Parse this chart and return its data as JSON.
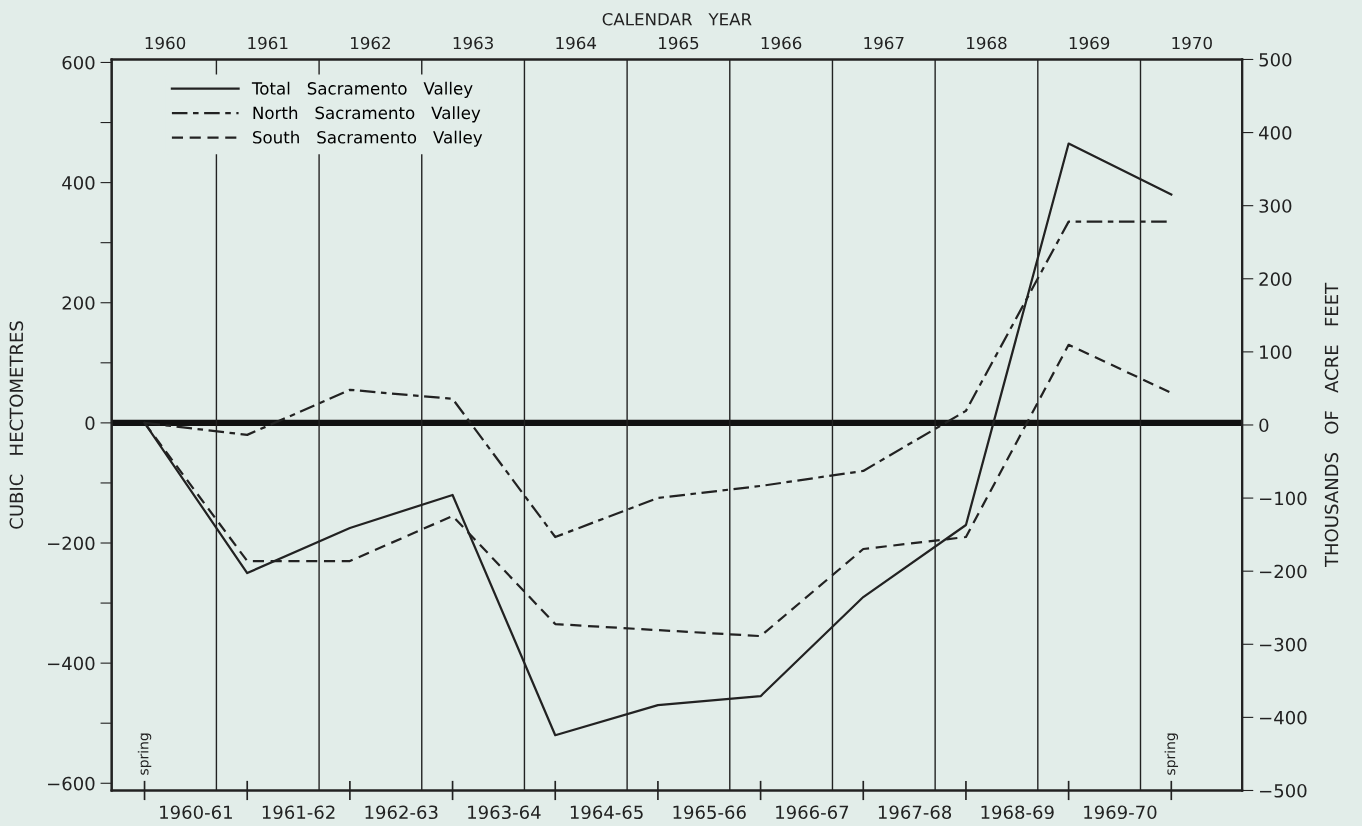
{
  "chart_data": {
    "type": "line",
    "xlabel": "CALENDAR   YEAR",
    "ylabel": "CUBIC   HECTOMETRES",
    "y2label": "THOUSANDS   OF   ACRE   FEET",
    "x": [
      1960,
      1961,
      1962,
      1963,
      1964,
      1965,
      1966,
      1967,
      1968,
      1969,
      1970
    ],
    "series": [
      {
        "name": "Total   Sacramento   Valley",
        "color": "#222222",
        "line_style": "solid",
        "values": [
          0,
          -250,
          -175,
          -120,
          -520,
          -470,
          -455,
          -290,
          -170,
          465,
          380
        ]
      },
      {
        "name": "North   Sacramento   Valley",
        "color": "#222222",
        "line_style": "dashdot",
        "values": [
          0,
          -20,
          55,
          40,
          -190,
          -125,
          -105,
          -80,
          20,
          335,
          335
        ]
      },
      {
        "name": "South   Sacramento   Valley",
        "color": "#222222",
        "line_style": "dashed",
        "values": [
          0,
          -230,
          -230,
          -155,
          -335,
          -345,
          -355,
          -210,
          -190,
          130,
          50
        ]
      }
    ],
    "xlim": [
      1959.68,
      1970.69
    ],
    "xticks": [
      {
        "value": 1960.2,
        "label": "1960"
      },
      {
        "value": 1961.2,
        "label": "1961"
      },
      {
        "value": 1962.2,
        "label": "1962"
      },
      {
        "value": 1963.2,
        "label": "1963"
      },
      {
        "value": 1964.2,
        "label": "1964"
      },
      {
        "value": 1965.2,
        "label": "1965"
      },
      {
        "value": 1966.2,
        "label": "1966"
      },
      {
        "value": 1967.2,
        "label": "1967"
      },
      {
        "value": 1968.2,
        "label": "1968"
      },
      {
        "value": 1969.2,
        "label": "1969"
      },
      {
        "value": 1970.2,
        "label": "1970"
      }
    ],
    "ylim": [
      -612,
      605
    ],
    "yticks": [
      {
        "value": -600,
        "label": "−600"
      },
      {
        "value": -500,
        "label": null
      },
      {
        "value": -400,
        "label": "−400"
      },
      {
        "value": -300,
        "label": null
      },
      {
        "value": -200,
        "label": "−200"
      },
      {
        "value": -100,
        "label": null
      },
      {
        "value": 0,
        "label": "0"
      },
      {
        "value": 100,
        "label": null
      },
      {
        "value": 200,
        "label": "200"
      },
      {
        "value": 300,
        "label": null
      },
      {
        "value": 400,
        "label": "400"
      },
      {
        "value": 500,
        "label": null
      },
      {
        "value": 600,
        "label": "600"
      }
    ],
    "y2lim": [
      -500,
      500
    ],
    "y2ticks": [
      {
        "value": -500,
        "label": "−500"
      },
      {
        "value": -400,
        "label": "−400"
      },
      {
        "value": -300,
        "label": "−300"
      },
      {
        "value": -200,
        "label": "−200"
      },
      {
        "value": -100,
        "label": "−100"
      },
      {
        "value": 0,
        "label": "0"
      },
      {
        "value": 100,
        "label": "100"
      },
      {
        "value": 200,
        "label": "200"
      },
      {
        "value": 300,
        "label": "300"
      },
      {
        "value": 400,
        "label": "400"
      },
      {
        "value": 500,
        "label": "500"
      }
    ],
    "ref_lines": [
      {
        "axis": "y",
        "value": 0,
        "color": "#111111"
      },
      {
        "axis": "x",
        "value": 1960.7
      },
      {
        "axis": "x",
        "value": 1961.7
      },
      {
        "axis": "x",
        "value": 1962.7
      },
      {
        "axis": "x",
        "value": 1963.7
      },
      {
        "axis": "x",
        "value": 1964.7
      },
      {
        "axis": "x",
        "value": 1965.7
      },
      {
        "axis": "x",
        "value": 1966.7
      },
      {
        "axis": "x",
        "value": 1967.7
      },
      {
        "axis": "x",
        "value": 1968.7
      },
      {
        "axis": "x",
        "value": 1969.7
      }
    ],
    "annotations": [
      "1960-61",
      "1961-62",
      "1962-63",
      "1963-64",
      "1964-65",
      "1965-66",
      "1966-67",
      "1967-68",
      "1968-69",
      "1969-70",
      "spring",
      "spring"
    ],
    "legend": "top left",
    "grid": false,
    "marker": "none"
  }
}
